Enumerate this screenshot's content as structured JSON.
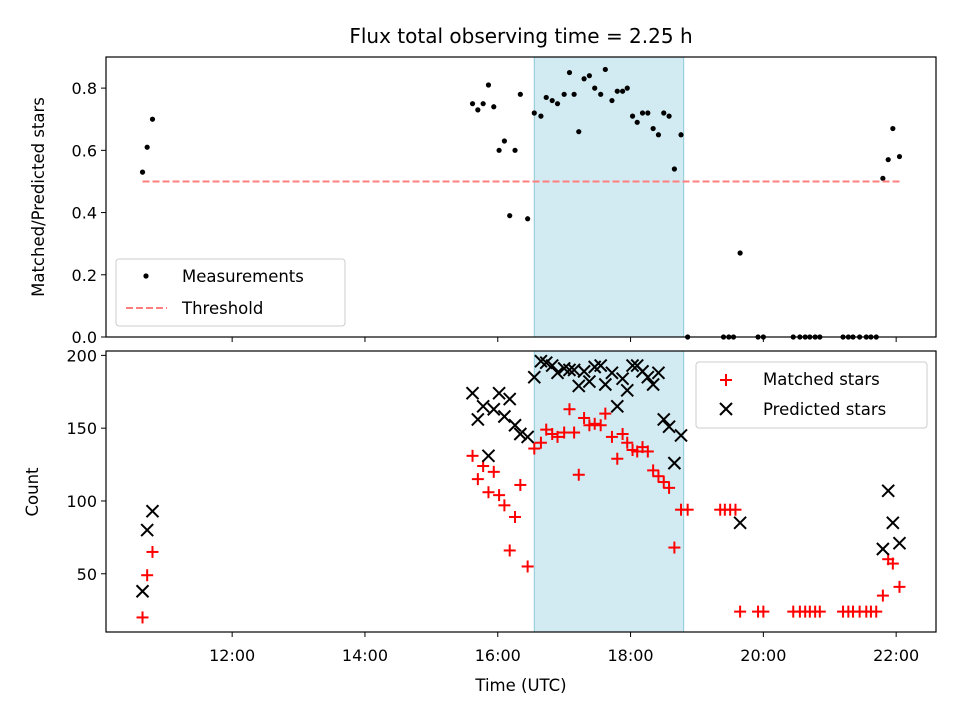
{
  "chart_data": [
    {
      "type": "scatter",
      "panel": "top",
      "title": "Flux total observing time = 2.25 h",
      "ylabel": "Matched/Predicted stars",
      "xlabel": "",
      "xlim": [
        10.1,
        22.6
      ],
      "ylim": [
        0,
        0.9
      ],
      "yticks": [
        0.0,
        0.2,
        0.4,
        0.6,
        0.8
      ],
      "ytick_labels": [
        "0.0",
        "0.2",
        "0.4",
        "0.6",
        "0.8"
      ],
      "xticks": [
        12,
        14,
        16,
        18,
        20,
        22
      ],
      "highlight_span": {
        "x0": 16.55,
        "x1": 18.8,
        "color": "#add8e6"
      },
      "legend": {
        "placement": "lower-left"
      },
      "series": [
        {
          "name": "Measurements",
          "marker": "dot",
          "color": "#000000",
          "points": [
            [
              10.65,
              0.53
            ],
            [
              10.72,
              0.61
            ],
            [
              10.8,
              0.7
            ],
            [
              15.62,
              0.75
            ],
            [
              15.7,
              0.73
            ],
            [
              15.78,
              0.75
            ],
            [
              15.86,
              0.81
            ],
            [
              15.94,
              0.74
            ],
            [
              16.02,
              0.6
            ],
            [
              16.1,
              0.63
            ],
            [
              16.18,
              0.39
            ],
            [
              16.26,
              0.6
            ],
            [
              16.34,
              0.78
            ],
            [
              16.45,
              0.38
            ],
            [
              16.55,
              0.72
            ],
            [
              16.65,
              0.71
            ],
            [
              16.73,
              0.77
            ],
            [
              16.82,
              0.76
            ],
            [
              16.9,
              0.75
            ],
            [
              17.0,
              0.78
            ],
            [
              17.08,
              0.85
            ],
            [
              17.15,
              0.78
            ],
            [
              17.22,
              0.66
            ],
            [
              17.3,
              0.83
            ],
            [
              17.38,
              0.84
            ],
            [
              17.46,
              0.8
            ],
            [
              17.55,
              0.78
            ],
            [
              17.62,
              0.86
            ],
            [
              17.72,
              0.76
            ],
            [
              17.8,
              0.79
            ],
            [
              17.88,
              0.79
            ],
            [
              17.95,
              0.8
            ],
            [
              18.03,
              0.71
            ],
            [
              18.1,
              0.69
            ],
            [
              18.18,
              0.72
            ],
            [
              18.26,
              0.72
            ],
            [
              18.34,
              0.67
            ],
            [
              18.42,
              0.65
            ],
            [
              18.5,
              0.72
            ],
            [
              18.58,
              0.71
            ],
            [
              18.66,
              0.54
            ],
            [
              18.76,
              0.65
            ],
            [
              18.86,
              0.0
            ],
            [
              19.4,
              0.0
            ],
            [
              19.48,
              0.0
            ],
            [
              19.55,
              0.0
            ],
            [
              19.65,
              0.27
            ],
            [
              19.92,
              0.0
            ],
            [
              20.0,
              0.0
            ],
            [
              20.45,
              0.0
            ],
            [
              20.55,
              0.0
            ],
            [
              20.63,
              0.0
            ],
            [
              20.7,
              0.0
            ],
            [
              20.78,
              0.0
            ],
            [
              20.85,
              0.0
            ],
            [
              21.2,
              0.0
            ],
            [
              21.28,
              0.0
            ],
            [
              21.35,
              0.0
            ],
            [
              21.45,
              0.0
            ],
            [
              21.55,
              0.0
            ],
            [
              21.62,
              0.0
            ],
            [
              21.7,
              0.0
            ],
            [
              21.8,
              0.51
            ],
            [
              21.88,
              0.57
            ],
            [
              21.95,
              0.67
            ],
            [
              22.05,
              0.58
            ]
          ]
        },
        {
          "name": "Threshold",
          "marker": "dashed-line",
          "color": "#ff7f7f",
          "points": [
            [
              10.65,
              0.5
            ],
            [
              22.05,
              0.5
            ]
          ]
        }
      ]
    },
    {
      "type": "scatter",
      "panel": "bottom",
      "title": "",
      "ylabel": "Count",
      "xlabel": "Time (UTC)",
      "xlim": [
        10.1,
        22.6
      ],
      "ylim": [
        10,
        203
      ],
      "yticks": [
        50,
        100,
        150,
        200
      ],
      "ytick_labels": [
        "50",
        "100",
        "150",
        "200"
      ],
      "xticks": [
        12,
        14,
        16,
        18,
        20,
        22
      ],
      "xtick_labels": [
        "12:00",
        "14:00",
        "16:00",
        "18:00",
        "20:00",
        "22:00"
      ],
      "highlight_span": {
        "x0": 16.55,
        "x1": 18.8,
        "color": "#add8e6"
      },
      "legend": {
        "placement": "upper-right"
      },
      "series": [
        {
          "name": "Matched stars",
          "marker": "plus",
          "color": "#ff0000",
          "points": [
            [
              10.65,
              20
            ],
            [
              10.72,
              49
            ],
            [
              10.8,
              65
            ],
            [
              15.62,
              131
            ],
            [
              15.7,
              115
            ],
            [
              15.78,
              124
            ],
            [
              15.86,
              106
            ],
            [
              15.94,
              120
            ],
            [
              16.02,
              104
            ],
            [
              16.1,
              97
            ],
            [
              16.18,
              66
            ],
            [
              16.26,
              89
            ],
            [
              16.34,
              111
            ],
            [
              16.45,
              55
            ],
            [
              16.55,
              136
            ],
            [
              16.65,
              140
            ],
            [
              16.73,
              149
            ],
            [
              16.82,
              146
            ],
            [
              16.9,
              144
            ],
            [
              17.0,
              147
            ],
            [
              17.08,
              163
            ],
            [
              17.15,
              147
            ],
            [
              17.22,
              118
            ],
            [
              17.3,
              157
            ],
            [
              17.38,
              152
            ],
            [
              17.46,
              153
            ],
            [
              17.55,
              152
            ],
            [
              17.62,
              160
            ],
            [
              17.72,
              144
            ],
            [
              17.8,
              129
            ],
            [
              17.88,
              146
            ],
            [
              17.95,
              140
            ],
            [
              18.03,
              135
            ],
            [
              18.1,
              134
            ],
            [
              18.18,
              137
            ],
            [
              18.26,
              134
            ],
            [
              18.34,
              121
            ],
            [
              18.42,
              117
            ],
            [
              18.5,
              113
            ],
            [
              18.58,
              109
            ],
            [
              18.66,
              68
            ],
            [
              18.76,
              94
            ],
            [
              18.86,
              94
            ],
            [
              19.35,
              94
            ],
            [
              19.42,
              94
            ],
            [
              19.5,
              94
            ],
            [
              19.58,
              94
            ],
            [
              19.65,
              24
            ],
            [
              19.92,
              24
            ],
            [
              20.0,
              24
            ],
            [
              20.45,
              24
            ],
            [
              20.55,
              24
            ],
            [
              20.63,
              24
            ],
            [
              20.7,
              24
            ],
            [
              20.78,
              24
            ],
            [
              20.85,
              24
            ],
            [
              21.2,
              24
            ],
            [
              21.28,
              24
            ],
            [
              21.35,
              24
            ],
            [
              21.45,
              24
            ],
            [
              21.55,
              24
            ],
            [
              21.62,
              24
            ],
            [
              21.7,
              24
            ],
            [
              21.8,
              35
            ],
            [
              21.88,
              60
            ],
            [
              21.95,
              57
            ],
            [
              22.05,
              41
            ]
          ]
        },
        {
          "name": "Predicted stars",
          "marker": "x",
          "color": "#000000",
          "points": [
            [
              10.65,
              38
            ],
            [
              10.72,
              80
            ],
            [
              10.8,
              93
            ],
            [
              15.62,
              174
            ],
            [
              15.7,
              156
            ],
            [
              15.78,
              165
            ],
            [
              15.86,
              131
            ],
            [
              15.94,
              163
            ],
            [
              16.02,
              174
            ],
            [
              16.1,
              158
            ],
            [
              16.18,
              170
            ],
            [
              16.26,
              152
            ],
            [
              16.34,
              146
            ],
            [
              16.45,
              144
            ],
            [
              16.55,
              185
            ],
            [
              16.65,
              196
            ],
            [
              16.73,
              195
            ],
            [
              16.82,
              193
            ],
            [
              16.9,
              188
            ],
            [
              17.0,
              191
            ],
            [
              17.08,
              190
            ],
            [
              17.15,
              190
            ],
            [
              17.22,
              179
            ],
            [
              17.3,
              189
            ],
            [
              17.38,
              182
            ],
            [
              17.46,
              192
            ],
            [
              17.55,
              193
            ],
            [
              17.62,
              180
            ],
            [
              17.72,
              188
            ],
            [
              17.8,
              165
            ],
            [
              17.88,
              184
            ],
            [
              17.95,
              176
            ],
            [
              18.03,
              193
            ],
            [
              18.1,
              193
            ],
            [
              18.18,
              189
            ],
            [
              18.26,
              185
            ],
            [
              18.34,
              180
            ],
            [
              18.42,
              188
            ],
            [
              18.5,
              156
            ],
            [
              18.58,
              151
            ],
            [
              18.66,
              126
            ],
            [
              18.76,
              145
            ],
            [
              19.65,
              85
            ],
            [
              21.8,
              67
            ],
            [
              21.88,
              107
            ],
            [
              21.95,
              85
            ],
            [
              22.05,
              71
            ]
          ]
        }
      ]
    }
  ]
}
